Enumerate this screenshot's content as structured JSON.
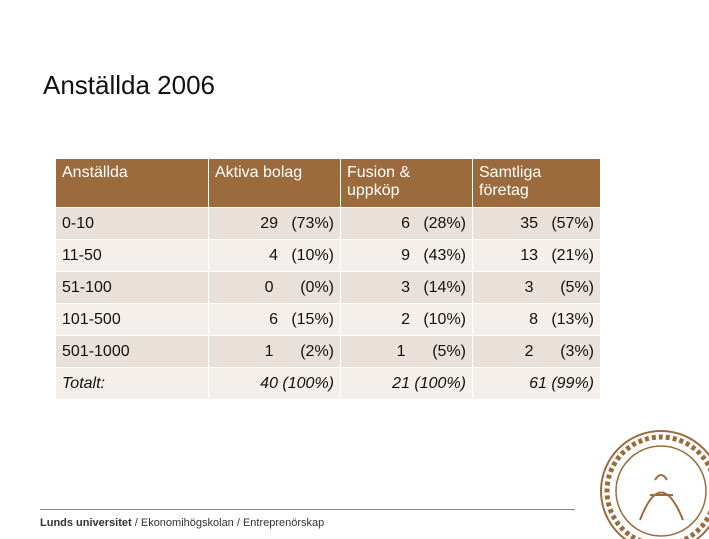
{
  "header": {
    "title": "Anställda 2006"
  },
  "table": {
    "columns": [
      "Anställda",
      "Aktiva bolag",
      "Fusion & uppköp",
      "Samtliga företag"
    ],
    "rows": [
      [
        "0-10",
        "29   (73%)",
        "6   (28%)",
        "35   (57%)"
      ],
      [
        "11-50",
        "4   (10%)",
        "9   (43%)",
        "13   (21%)"
      ],
      [
        "51-100",
        "0      (0%)",
        "3   (14%)",
        "3      (5%)"
      ],
      [
        "101-500",
        "6   (15%)",
        "2   (10%)",
        "8   (13%)"
      ],
      [
        "501-1000",
        "1      (2%)",
        "1      (5%)",
        "2      (3%)"
      ],
      [
        "Totalt:",
        "40 (100%)",
        "21 (100%)",
        "61 (99%)"
      ]
    ]
  },
  "footer": {
    "org": "Lunds universitet",
    "path": " / Ekonomihögskolan / Entreprenörskap"
  }
}
